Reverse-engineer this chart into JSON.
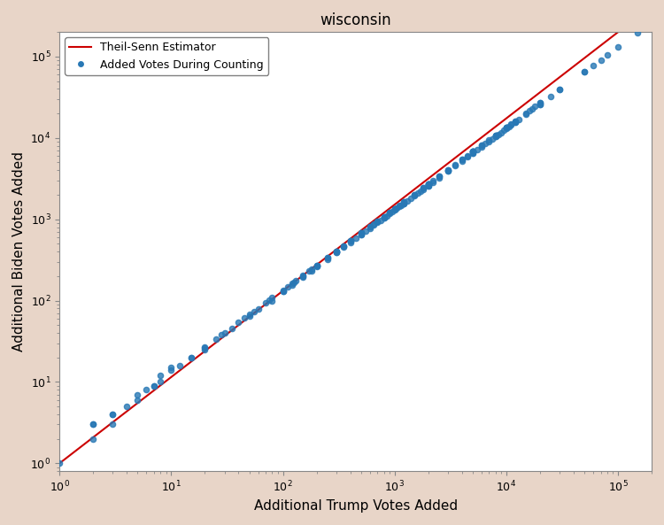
{
  "title": "wisconsin",
  "xlabel": "Additional Trump Votes Added",
  "ylabel": "Additional Biden Votes Added",
  "background_color": "#e8d5c8",
  "plot_bg_color": "#ffffff",
  "line_color": "#cc0000",
  "dot_color": "#2878b5",
  "xlim_log": [
    1,
    200000
  ],
  "ylim_log": [
    0.8,
    200000
  ],
  "theil_slope": 1.25,
  "theil_intercept": -0.05,
  "legend_line_label": "Theil-Senn Estimator",
  "legend_dot_label": "Added Votes During Counting",
  "seed": 42,
  "scatter_x": [
    1,
    2,
    2,
    3,
    3,
    4,
    5,
    6,
    7,
    8,
    10,
    15,
    20,
    30,
    50,
    80,
    100,
    120,
    150,
    200,
    250,
    300,
    350,
    400,
    450,
    500,
    550,
    600,
    650,
    700,
    750,
    800,
    850,
    900,
    950,
    1000,
    1050,
    1100,
    1150,
    1200,
    1300,
    1400,
    1500,
    1600,
    1700,
    1800,
    2000,
    2200,
    2500,
    3000,
    3500,
    4000,
    4500,
    5000,
    5500,
    6000,
    6500,
    7000,
    7500,
    8000,
    8500,
    9000,
    9500,
    10000,
    10500,
    11000,
    12000,
    13000,
    15000,
    20000,
    25000,
    30000,
    50000,
    60000,
    70000,
    80000,
    100000,
    150000,
    2,
    3,
    5,
    8,
    12,
    20,
    35,
    60,
    100,
    180,
    300,
    500,
    800,
    1200,
    2000,
    3000,
    5000,
    8000,
    12000,
    20000,
    30000,
    50000,
    150,
    250,
    400,
    700,
    1200,
    2000,
    3500,
    6000,
    10000,
    17000,
    200,
    500,
    1000,
    2000,
    5000,
    10000,
    20000,
    300,
    600,
    1200,
    2500,
    5000,
    1500,
    3000,
    6000,
    12000,
    2000,
    5000,
    10000,
    20000,
    3000,
    7000,
    15000,
    5000,
    12000,
    8000,
    18000,
    1000,
    2500,
    5000,
    10000,
    800,
    2000,
    4000,
    8000,
    400,
    1000,
    2000,
    600,
    1500,
    200,
    500,
    1000,
    100,
    300,
    700,
    50,
    150,
    400,
    1800,
    4000,
    8000,
    16000,
    900,
    2200,
    5000,
    11000,
    350,
    900,
    2000,
    4500,
    130,
    350,
    800,
    1800,
    80,
    200,
    500,
    1100,
    45,
    120,
    300,
    650,
    25,
    70,
    180,
    400,
    15,
    40,
    110,
    250,
    10,
    28,
    75,
    170,
    7,
    20,
    55,
    125
  ],
  "scatter_y": [
    1,
    2,
    3,
    4,
    3,
    5,
    7,
    8,
    9,
    12,
    15,
    20,
    25,
    40,
    65,
    100,
    130,
    155,
    195,
    260,
    325,
    390,
    455,
    520,
    585,
    650,
    715,
    780,
    845,
    910,
    975,
    1040,
    1105,
    1170,
    1235,
    1300,
    1365,
    1430,
    1495,
    1560,
    1690,
    1820,
    1950,
    2080,
    2210,
    2340,
    2600,
    2860,
    3250,
    3900,
    4550,
    5200,
    5850,
    6500,
    7150,
    7800,
    8450,
    9100,
    9750,
    10400,
    11050,
    11700,
    12350,
    13000,
    13650,
    14300,
    15600,
    16900,
    19500,
    26000,
    32500,
    39000,
    65000,
    78000,
    91000,
    104000,
    130000,
    195000,
    3,
    4,
    6,
    10,
    16,
    26,
    46,
    78,
    130,
    234,
    390,
    650,
    1040,
    1560,
    2600,
    3900,
    6500,
    10400,
    15600,
    26000,
    39000,
    65000,
    200,
    340,
    540,
    945,
    1620,
    2700,
    4725,
    8100,
    13500,
    22950,
    270,
    675,
    1350,
    2700,
    6750,
    13500,
    27000,
    405,
    810,
    1620,
    3375,
    6750,
    2025,
    4050,
    8100,
    16200,
    2700,
    6750,
    13500,
    27000,
    4050,
    9450,
    20250,
    6750,
    16200,
    10800,
    24300,
    1350,
    3375,
    6750,
    13500,
    1080,
    2700,
    5400,
    10800,
    540,
    1350,
    2700,
    810,
    2025,
    270,
    675,
    1350,
    135,
    405,
    945,
    68,
    203,
    540,
    2430,
    5400,
    10800,
    21600,
    1215,
    2970,
    6750,
    14850,
    473,
    1215,
    2700,
    6075,
    176,
    473,
    1080,
    2430,
    108,
    270,
    675,
    1485,
    61,
    162,
    405,
    878,
    34,
    95,
    243,
    540,
    20,
    54,
    149,
    338,
    14,
    38,
    101,
    230,
    9,
    27,
    74,
    169
  ]
}
